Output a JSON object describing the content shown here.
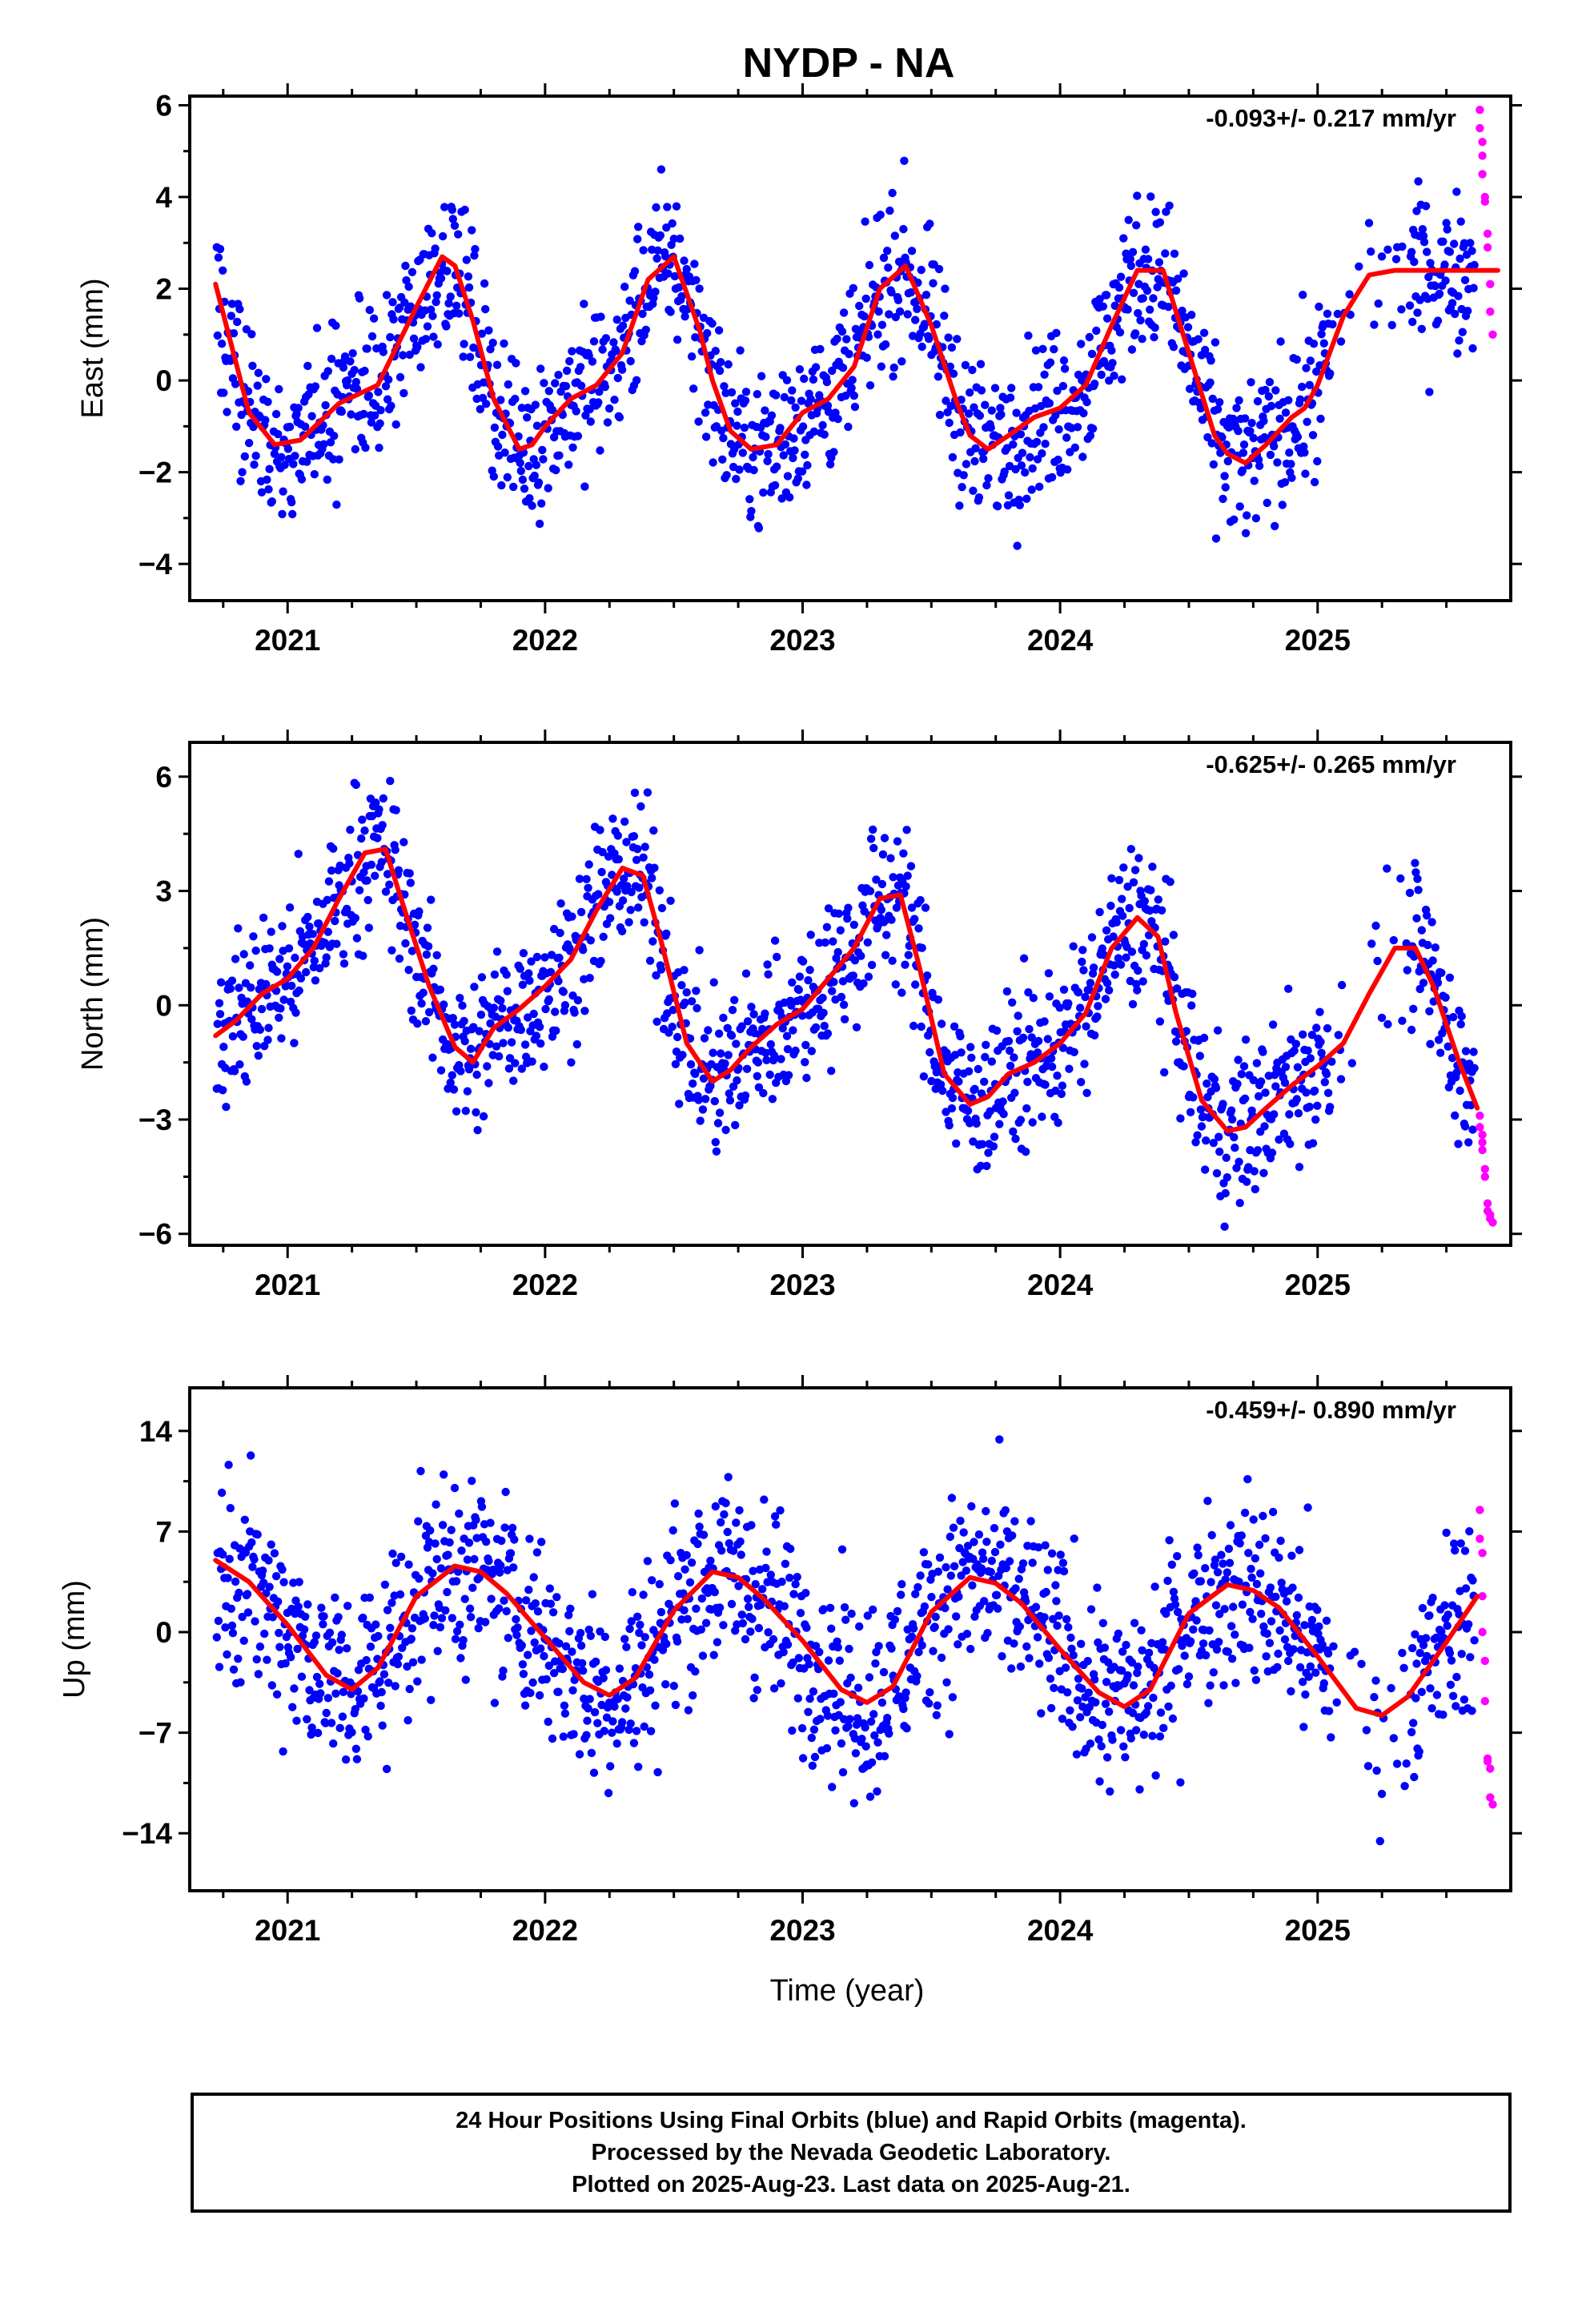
{
  "figure_title": "NYDP - NA",
  "xlabel": "Time (year)",
  "caption": [
    "24 Hour Positions Using Final Orbits (blue) and Rapid Orbits (magenta).",
    "Processed by the Nevada Geodetic Laboratory.",
    "Plotted on 2025-Aug-23. Last data on 2025-Aug-21."
  ],
  "colors": {
    "final_orbits": "#0000ff",
    "rapid_orbits": "#ff00ff",
    "model_fit": "#ff0000",
    "frame": "#000000"
  },
  "chart_data": [
    {
      "type": "scatter",
      "name": "east",
      "ylabel": "East (mm)",
      "velocity_label": "-0.093+/- 0.217 mm/yr",
      "xlim": [
        2020.62,
        2025.75
      ],
      "ylim": [
        -4.8,
        6.2
      ],
      "yticks": [
        -4,
        -2,
        0,
        2,
        4,
        6
      ],
      "xticks": [
        2021,
        2022,
        2023,
        2024,
        2025
      ],
      "grid": false,
      "fit_curve": {
        "x": [
          2020.72,
          2020.85,
          2020.95,
          2021.05,
          2021.2,
          2021.35,
          2021.5,
          2021.6,
          2021.65,
          2021.72,
          2021.8,
          2021.9,
          2021.95,
          2022.0,
          2022.1,
          2022.2,
          2022.3,
          2022.4,
          2022.5,
          2022.6,
          2022.65,
          2022.72,
          2022.8,
          2022.9,
          2023.0,
          2023.1,
          2023.2,
          2023.3,
          2023.4,
          2023.5,
          2023.6,
          2023.65,
          2023.72,
          2023.8,
          2023.9,
          2024.0,
          2024.1,
          2024.2,
          2024.3,
          2024.4,
          2024.5,
          2024.6,
          2024.65,
          2024.72,
          2024.8,
          2024.9,
          2024.95,
          2025.0,
          2025.1,
          2025.2,
          2025.3,
          2025.4,
          2025.5,
          2025.6,
          2025.7
        ],
        "y": [
          2.1,
          -0.7,
          -1.4,
          -1.3,
          -0.5,
          -0.1,
          1.6,
          2.7,
          2.5,
          1.3,
          -0.4,
          -1.5,
          -1.4,
          -1.0,
          -0.4,
          -0.1,
          0.6,
          2.2,
          2.7,
          1.1,
          0.0,
          -1.1,
          -1.5,
          -1.4,
          -0.7,
          -0.4,
          0.3,
          2.0,
          2.5,
          1.2,
          -0.5,
          -1.2,
          -1.5,
          -1.2,
          -0.8,
          -0.6,
          -0.1,
          1.2,
          2.4,
          2.4,
          0.6,
          -1.2,
          -1.6,
          -1.8,
          -1.4,
          -0.8,
          -0.6,
          -0.1,
          1.4,
          2.3,
          2.4,
          2.4,
          2.4,
          2.4,
          2.4
        ]
      },
      "rapid_points": {
        "x": [
          2025.63,
          2025.63,
          2025.64,
          2025.64,
          2025.64,
          2025.65,
          2025.65,
          2025.66,
          2025.66,
          2025.67,
          2025.67,
          2025.68
        ],
        "y": [
          5.9,
          5.5,
          5.2,
          4.9,
          4.5,
          4.0,
          3.9,
          3.2,
          2.9,
          2.1,
          1.5,
          1.0
        ]
      }
    },
    {
      "type": "scatter",
      "name": "north",
      "ylabel": "North (mm)",
      "velocity_label": "-0.625+/- 0.265 mm/yr",
      "xlim": [
        2020.62,
        2025.75
      ],
      "ylim": [
        -6.3,
        6.9
      ],
      "yticks": [
        -6,
        -3,
        0,
        3,
        6
      ],
      "xticks": [
        2021,
        2022,
        2023,
        2024,
        2025
      ],
      "grid": false,
      "fit_curve": {
        "x": [
          2020.72,
          2020.8,
          2020.9,
          2021.0,
          2021.1,
          2021.2,
          2021.3,
          2021.38,
          2021.45,
          2021.55,
          2021.65,
          2021.72,
          2021.8,
          2021.9,
          2022.0,
          2022.1,
          2022.2,
          2022.3,
          2022.38,
          2022.45,
          2022.55,
          2022.65,
          2022.72,
          2022.8,
          2022.9,
          2023.0,
          2023.1,
          2023.2,
          2023.3,
          2023.38,
          2023.45,
          2023.55,
          2023.65,
          2023.72,
          2023.8,
          2023.9,
          2024.0,
          2024.1,
          2024.2,
          2024.3,
          2024.38,
          2024.45,
          2024.55,
          2024.65,
          2024.72,
          2024.8,
          2024.9,
          2025.0,
          2025.1,
          2025.2,
          2025.3,
          2025.38,
          2025.45,
          2025.55,
          2025.62
        ],
        "y": [
          -0.8,
          -0.4,
          0.3,
          0.7,
          1.5,
          2.8,
          4.0,
          4.1,
          2.6,
          0.5,
          -1.1,
          -1.5,
          -0.6,
          -0.1,
          0.5,
          1.2,
          2.5,
          3.6,
          3.4,
          1.7,
          -1.0,
          -2.0,
          -1.7,
          -1.1,
          -0.5,
          -0.1,
          0.7,
          1.5,
          2.8,
          2.9,
          1.1,
          -1.8,
          -2.6,
          -2.4,
          -1.8,
          -1.5,
          -1.0,
          -0.2,
          1.5,
          2.3,
          1.8,
          -0.2,
          -2.5,
          -3.3,
          -3.2,
          -2.7,
          -2.1,
          -1.6,
          -1.0,
          0.3,
          1.5,
          1.5,
          0.5,
          -1.5,
          -2.7
        ]
      },
      "rapid_points": {
        "x": [
          2025.63,
          2025.63,
          2025.64,
          2025.64,
          2025.64,
          2025.65,
          2025.65,
          2025.66,
          2025.66,
          2025.67,
          2025.67,
          2025.68
        ],
        "y": [
          -2.9,
          -3.2,
          -3.4,
          -3.6,
          -3.8,
          -4.3,
          -4.5,
          -5.2,
          -5.4,
          -5.5,
          -5.6,
          -5.7
        ]
      }
    },
    {
      "type": "scatter",
      "name": "up",
      "ylabel": "Up (mm)",
      "velocity_label": "-0.459+/- 0.890 mm/yr",
      "xlim": [
        2020.62,
        2025.75
      ],
      "ylim": [
        -18.0,
        17.0
      ],
      "yticks": [
        -14,
        -7,
        0,
        7,
        14
      ],
      "xticks": [
        2021,
        2022,
        2023,
        2024,
        2025
      ],
      "grid": false,
      "fit_curve": {
        "x": [
          2020.72,
          2020.85,
          2021.0,
          2021.15,
          2021.25,
          2021.35,
          2021.5,
          2021.65,
          2021.75,
          2021.85,
          2022.0,
          2022.15,
          2022.25,
          2022.35,
          2022.5,
          2022.65,
          2022.75,
          2022.85,
          2023.0,
          2023.15,
          2023.25,
          2023.35,
          2023.5,
          2023.65,
          2023.75,
          2023.85,
          2024.0,
          2024.15,
          2024.25,
          2024.35,
          2024.5,
          2024.65,
          2024.75,
          2024.85,
          2025.0,
          2025.15,
          2025.25,
          2025.35,
          2025.5,
          2025.62
        ],
        "y": [
          5.0,
          3.5,
          0.5,
          -3.0,
          -4.0,
          -2.5,
          2.5,
          4.6,
          4.2,
          2.7,
          -0.4,
          -3.5,
          -4.4,
          -3.2,
          1.5,
          4.2,
          3.8,
          2.3,
          -0.6,
          -4.0,
          -4.9,
          -3.8,
          1.4,
          3.8,
          3.4,
          2.0,
          -1.2,
          -4.2,
          -5.2,
          -4.0,
          1.3,
          3.3,
          2.9,
          1.7,
          -1.7,
          -5.3,
          -5.8,
          -4.5,
          -0.7,
          2.5
        ]
      },
      "rapid_points": {
        "x": [
          2025.63,
          2025.63,
          2025.64,
          2025.64,
          2025.64,
          2025.65,
          2025.65,
          2025.66,
          2025.66,
          2025.67,
          2025.67,
          2025.68
        ],
        "y": [
          8.5,
          6.5,
          5.5,
          2.5,
          0.0,
          -2.0,
          -4.8,
          -8.8,
          -9.0,
          -9.5,
          -11.5,
          -12.0
        ]
      }
    }
  ]
}
